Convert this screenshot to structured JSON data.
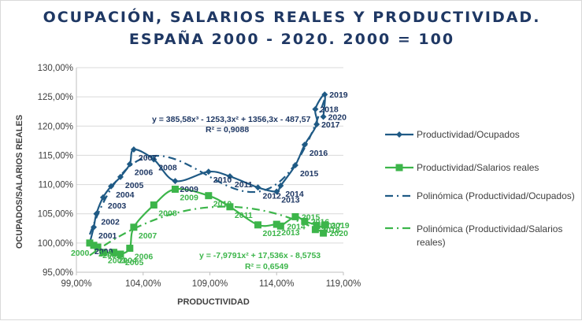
{
  "title_line1": "OCUPACIÓN, SALARIOS REALES Y PRODUCTIVIDAD.",
  "title_line2": "ESPAÑA 2000 - 2020. 2000 = 100",
  "colors": {
    "series1": "#1f5a85",
    "series2": "#3cb54a",
    "title": "#1f3864",
    "equation": "#1f3864"
  },
  "chart_data": {
    "type": "scatter",
    "xlabel": "PRODUCTIVIDAD",
    "ylabel": "OCUPADOS/SALARIOS REALES",
    "xlim": [
      99,
      119
    ],
    "ylim": [
      95,
      130
    ],
    "x_ticks": [
      99,
      104,
      109,
      114,
      119
    ],
    "x_tick_labels": [
      "99,00%",
      "104,00%",
      "109,00%",
      "114,00%",
      "119,00%"
    ],
    "y_ticks": [
      95,
      100,
      105,
      110,
      115,
      120,
      125,
      130
    ],
    "y_tick_labels": [
      "95,00%",
      "100,00%",
      "105,00%",
      "110,00%",
      "115,00%",
      "120,00%",
      "125,00%",
      "130,00%"
    ],
    "grid": "horizontal",
    "legend_position": "right",
    "series": [
      {
        "name": "Productividad/Ocupados",
        "marker": "diamond",
        "labels": [
          "2000",
          "2001",
          "2002",
          "2003",
          "2004",
          "2005",
          "2006",
          "2007",
          "2008",
          "2009",
          "2010",
          "2011",
          "2012",
          "2013",
          "2014",
          "2015",
          "2016",
          "2017",
          "2018",
          "2019",
          "2020"
        ],
        "x": [
          100.0,
          100.3,
          100.5,
          101.0,
          101.6,
          102.3,
          103.0,
          103.3,
          104.8,
          106.4,
          108.9,
          110.5,
          112.6,
          114.0,
          114.3,
          115.4,
          116.1,
          117.0,
          116.9,
          117.6,
          117.5
        ],
        "y": [
          100.0,
          102.7,
          105.0,
          107.8,
          109.7,
          111.3,
          113.5,
          116.0,
          114.3,
          110.6,
          112.2,
          111.4,
          109.5,
          108.8,
          109.8,
          113.3,
          116.8,
          120.3,
          122.9,
          125.4,
          121.6
        ]
      },
      {
        "name": "Productividad/Salarios reales",
        "marker": "square",
        "labels": [
          "2000",
          "2001",
          "2002",
          "2003",
          "2004",
          "2005",
          "2006",
          "2007",
          "2008",
          "2009",
          "2010",
          "2011",
          "2012",
          "2013",
          "2014",
          "2015",
          "2016",
          "2017",
          "2018",
          "2019",
          "2020"
        ],
        "x": [
          100.0,
          100.3,
          100.6,
          101.0,
          101.8,
          102.3,
          103.0,
          103.3,
          104.8,
          106.4,
          108.9,
          110.5,
          112.6,
          114.0,
          114.3,
          115.4,
          116.1,
          117.0,
          116.9,
          117.6,
          117.5
        ],
        "y": [
          100.0,
          99.6,
          99.3,
          98.4,
          98.4,
          98.1,
          99.1,
          102.7,
          106.5,
          109.2,
          108.1,
          106.2,
          103.1,
          103.2,
          102.9,
          104.5,
          103.7,
          103.0,
          102.3,
          103.1,
          101.7
        ]
      },
      {
        "name": "Polinómica (Productividad/Ocupados)",
        "style": "trendline-dashdot",
        "equation": "y = 385,58x³ - 1253,3x² + 1356,3x - 487,57",
        "r2": "R² = 0,9088"
      },
      {
        "name": "Polinómica (Productividad/Salarios reales)",
        "style": "trendline-dashdot",
        "equation": "y = -7,9791x² + 17,536x - 8,5753",
        "r2": "R² = 0,6549"
      }
    ]
  }
}
